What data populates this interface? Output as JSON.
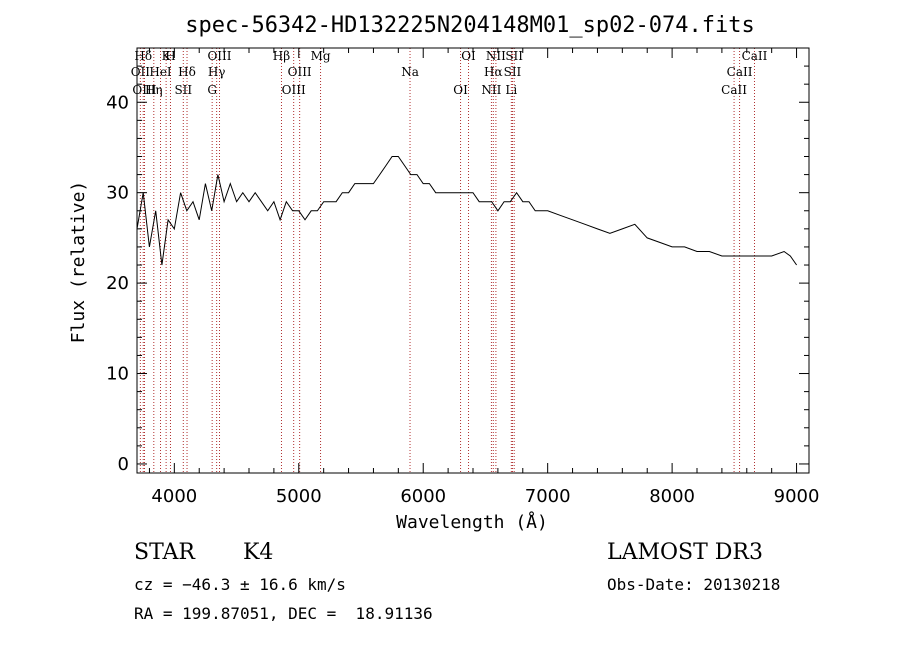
{
  "chart_data": {
    "type": "line",
    "title": "spec-56342-HD132225N204148M01_sp02-074.fits",
    "xlabel": "Wavelength (Å)",
    "ylabel": "Flux (relative)",
    "xlim": [
      3700,
      9100
    ],
    "ylim": [
      -1,
      46
    ],
    "xticks": [
      4000,
      5000,
      6000,
      7000,
      8000,
      9000
    ],
    "yticks": [
      0,
      10,
      20,
      30,
      40
    ],
    "series": [
      {
        "name": "spectrum",
        "color": "#000000",
        "x": [
          3700,
          3750,
          3800,
          3850,
          3900,
          3950,
          4000,
          4050,
          4100,
          4150,
          4200,
          4250,
          4300,
          4350,
          4400,
          4450,
          4500,
          4550,
          4600,
          4650,
          4700,
          4750,
          4800,
          4850,
          4900,
          4950,
          5000,
          5050,
          5100,
          5150,
          5200,
          5250,
          5300,
          5350,
          5400,
          5450,
          5500,
          5550,
          5600,
          5650,
          5700,
          5750,
          5800,
          5850,
          5900,
          5950,
          6000,
          6050,
          6100,
          6150,
          6200,
          6250,
          6300,
          6350,
          6400,
          6450,
          6500,
          6550,
          6600,
          6650,
          6700,
          6750,
          6800,
          6850,
          6900,
          6950,
          7000,
          7100,
          7200,
          7300,
          7400,
          7500,
          7600,
          7700,
          7800,
          7900,
          8000,
          8100,
          8200,
          8300,
          8400,
          8500,
          8600,
          8700,
          8800,
          8900,
          8950,
          9000
        ],
        "y": [
          26,
          30,
          24,
          28,
          22,
          27,
          26,
          30,
          28,
          29,
          27,
          31,
          28,
          32,
          29,
          31,
          29,
          30,
          29,
          30,
          29,
          28,
          29,
          27,
          29,
          28,
          28,
          27,
          28,
          28,
          29,
          29,
          29,
          30,
          30,
          31,
          31,
          31,
          31,
          32,
          33,
          34,
          34,
          33,
          32,
          32,
          31,
          31,
          30,
          30,
          30,
          30,
          30,
          30,
          30,
          29,
          29,
          29,
          28,
          29,
          29,
          30,
          29,
          29,
          28,
          28,
          28,
          27.5,
          27,
          26.5,
          26,
          25.5,
          26,
          26.5,
          25,
          24.5,
          24,
          24,
          23.5,
          23.5,
          23,
          23,
          23,
          23,
          23,
          23.5,
          23,
          22
        ]
      }
    ],
    "annotations": [
      {
        "label": "Hδ",
        "wavelength": 3750
      },
      {
        "label": "OII",
        "wavelength": 3727
      },
      {
        "label": "OIII",
        "wavelength": 3760
      },
      {
        "label": "K",
        "wavelength": 3934
      },
      {
        "label": "HeI",
        "wavelength": 3889
      },
      {
        "label": "Hη",
        "wavelength": 3835
      },
      {
        "label": "H",
        "wavelength": 3969
      },
      {
        "label": "Hδ",
        "wavelength": 4102
      },
      {
        "label": "SII",
        "wavelength": 4072
      },
      {
        "label": "OIII",
        "wavelength": 4363
      },
      {
        "label": "Hγ",
        "wavelength": 4340
      },
      {
        "label": "G",
        "wavelength": 4304
      },
      {
        "label": "Hβ",
        "wavelength": 4861
      },
      {
        "label": "OIII",
        "wavelength": 5007
      },
      {
        "label": "OIII",
        "wavelength": 4959
      },
      {
        "label": "Mg",
        "wavelength": 5175
      },
      {
        "label": "Na",
        "wavelength": 5894
      },
      {
        "label": "OI",
        "wavelength": 6300
      },
      {
        "label": "OI",
        "wavelength": 6364
      },
      {
        "label": "Hα",
        "wavelength": 6563
      },
      {
        "label": "NII",
        "wavelength": 6548
      },
      {
        "label": "NII",
        "wavelength": 6584
      },
      {
        "label": "SII",
        "wavelength": 6717
      },
      {
        "label": "Li",
        "wavelength": 6708
      },
      {
        "label": "SII",
        "wavelength": 6731
      },
      {
        "label": "CaII",
        "wavelength": 8542
      },
      {
        "label": "CaII",
        "wavelength": 8498
      },
      {
        "label": "CaII",
        "wavelength": 8662
      }
    ]
  },
  "info": {
    "object_type": "STAR",
    "subclass": "K4",
    "survey": "LAMOST DR3",
    "cz": "cz = −46.3 ± 16.6 km/s",
    "obs_date": "Obs-Date: 20130218",
    "radec": "RA = 199.87051, DEC =  18.91136"
  },
  "colors": {
    "spectrum": "#000000",
    "line_markers": "#b03030"
  }
}
